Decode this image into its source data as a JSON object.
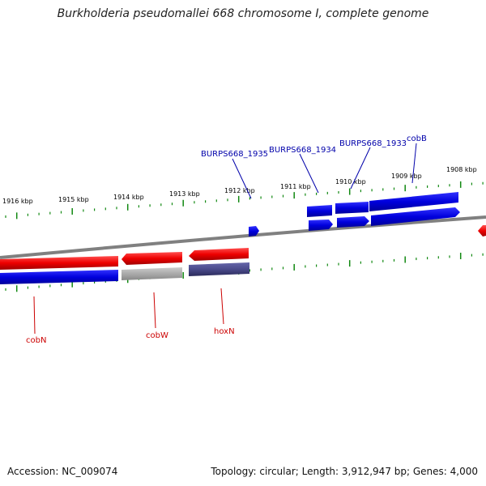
{
  "title": "Burkholderia pseudomallei 668 chromosome I, complete genome",
  "footer": {
    "accession": "Accession: NC_009074",
    "info": "Topology: circular; Length: 3,912,947 bp; Genes: 4,000"
  },
  "colors": {
    "forward_gene": "#0000ee",
    "reverse_gene": "#ee0000",
    "cds_blue": "#0000dd",
    "pseudo_gray": "#aaaaaa",
    "dark_cds": "#4a4a8a",
    "backbone": "#808080",
    "tick": "#118811",
    "label_forward": "#0000aa",
    "label_reverse": "#cc0000"
  },
  "scale_labels": [
    "1916 kbp",
    "1915 kbp",
    "1914 kbp",
    "1913 kbp",
    "1912 kbp",
    "1911 kbp",
    "1910 kbp",
    "1909 kbp",
    "1908 kbp"
  ],
  "forward_labels": [
    "BURPS668_1935",
    "BURPS668_1934",
    "BURPS668_1933",
    "cobB"
  ],
  "reverse_labels": [
    "cobN",
    "cobW",
    "hoxN"
  ]
}
